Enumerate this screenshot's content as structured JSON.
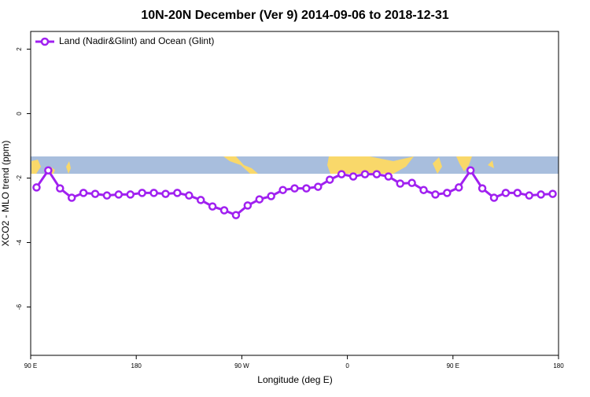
{
  "chart_data": {
    "type": "line",
    "title": "10N-20N December (Ver 9)   2014-09-06 to 2018-12-31",
    "x_label": "Longitude (deg E)",
    "y_label": "XCO2 - MLO trend (ppm)",
    "x": [
      95,
      105,
      115,
      125,
      135,
      145,
      155,
      165,
      175,
      185,
      195,
      205,
      215,
      225,
      235,
      245,
      255,
      265,
      275,
      285,
      295,
      305,
      315,
      325,
      335,
      345,
      355,
      365,
      375,
      385,
      395,
      405,
      415,
      425,
      435,
      445,
      455,
      465,
      475,
      485,
      495,
      505,
      515,
      525,
      535
    ],
    "series": [
      {
        "name": "Land (Nadir&Glint) and Ocean (Glint)",
        "color": "#a020f0",
        "values": [
          -2.29,
          -1.76,
          -2.32,
          -2.61,
          -2.46,
          -2.49,
          -2.54,
          -2.51,
          -2.51,
          -2.46,
          -2.46,
          -2.49,
          -2.46,
          -2.54,
          -2.68,
          -2.88,
          -3.0,
          -3.15,
          -2.85,
          -2.66,
          -2.56,
          -2.37,
          -2.32,
          -2.32,
          -2.27,
          -2.05,
          -1.88,
          -1.95,
          -1.88,
          -1.88,
          -1.95,
          -2.17,
          -2.15,
          -2.37,
          -2.51,
          -2.46,
          -2.29,
          -1.76,
          -2.32,
          -2.61,
          -2.46,
          -2.46,
          -2.54,
          -2.51,
          -2.49
        ]
      }
    ],
    "xlim": [
      90,
      540
    ],
    "xticks": [
      {
        "value": 90,
        "label": "90 E"
      },
      {
        "value": 180,
        "label": "180"
      },
      {
        "value": 270,
        "label": "90 W"
      },
      {
        "value": 360,
        "label": "0"
      },
      {
        "value": 450,
        "label": "90 E"
      },
      {
        "value": 540,
        "label": "180"
      }
    ],
    "ylim": [
      -7.5,
      2.55
    ],
    "yticks": [
      2,
      0,
      -2,
      -4,
      -6
    ],
    "legend": "top-left"
  }
}
